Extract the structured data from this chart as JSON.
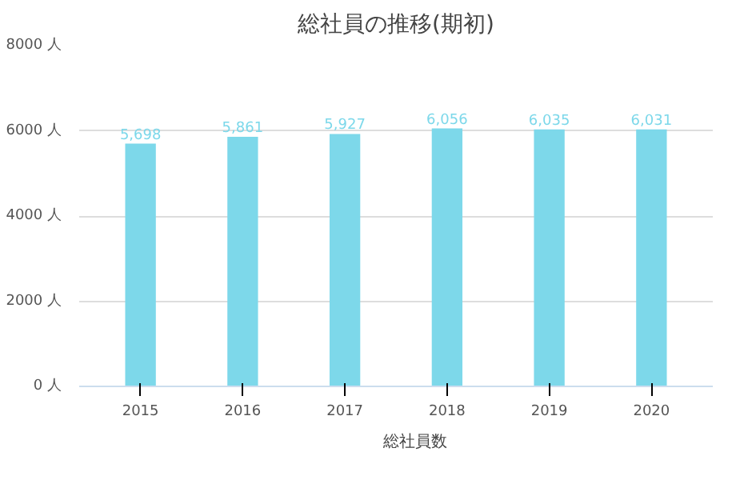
{
  "chart_data": {
    "type": "bar",
    "title": "総社員の推移(期初)",
    "categories": [
      "2015",
      "2016",
      "2017",
      "2018",
      "2019",
      "2020"
    ],
    "series": [
      {
        "name": "総社員数",
        "color": "#7dd8ea",
        "values": [
          5698,
          5861,
          5927,
          6056,
          6035,
          6031
        ],
        "value_labels": [
          "5,698",
          "5,861",
          "5,927",
          "6,056",
          "6,035",
          "6,031"
        ]
      }
    ],
    "ylim": [
      0,
      8000
    ],
    "yticks": [
      {
        "value": 0,
        "label": "0 人"
      },
      {
        "value": 2000,
        "label": "2000 人"
      },
      {
        "value": 4000,
        "label": "4000 人"
      },
      {
        "value": 6000,
        "label": "6000 人"
      },
      {
        "value": 8000,
        "label": "8000 人"
      }
    ],
    "grid": "y",
    "legend": "bottom"
  }
}
